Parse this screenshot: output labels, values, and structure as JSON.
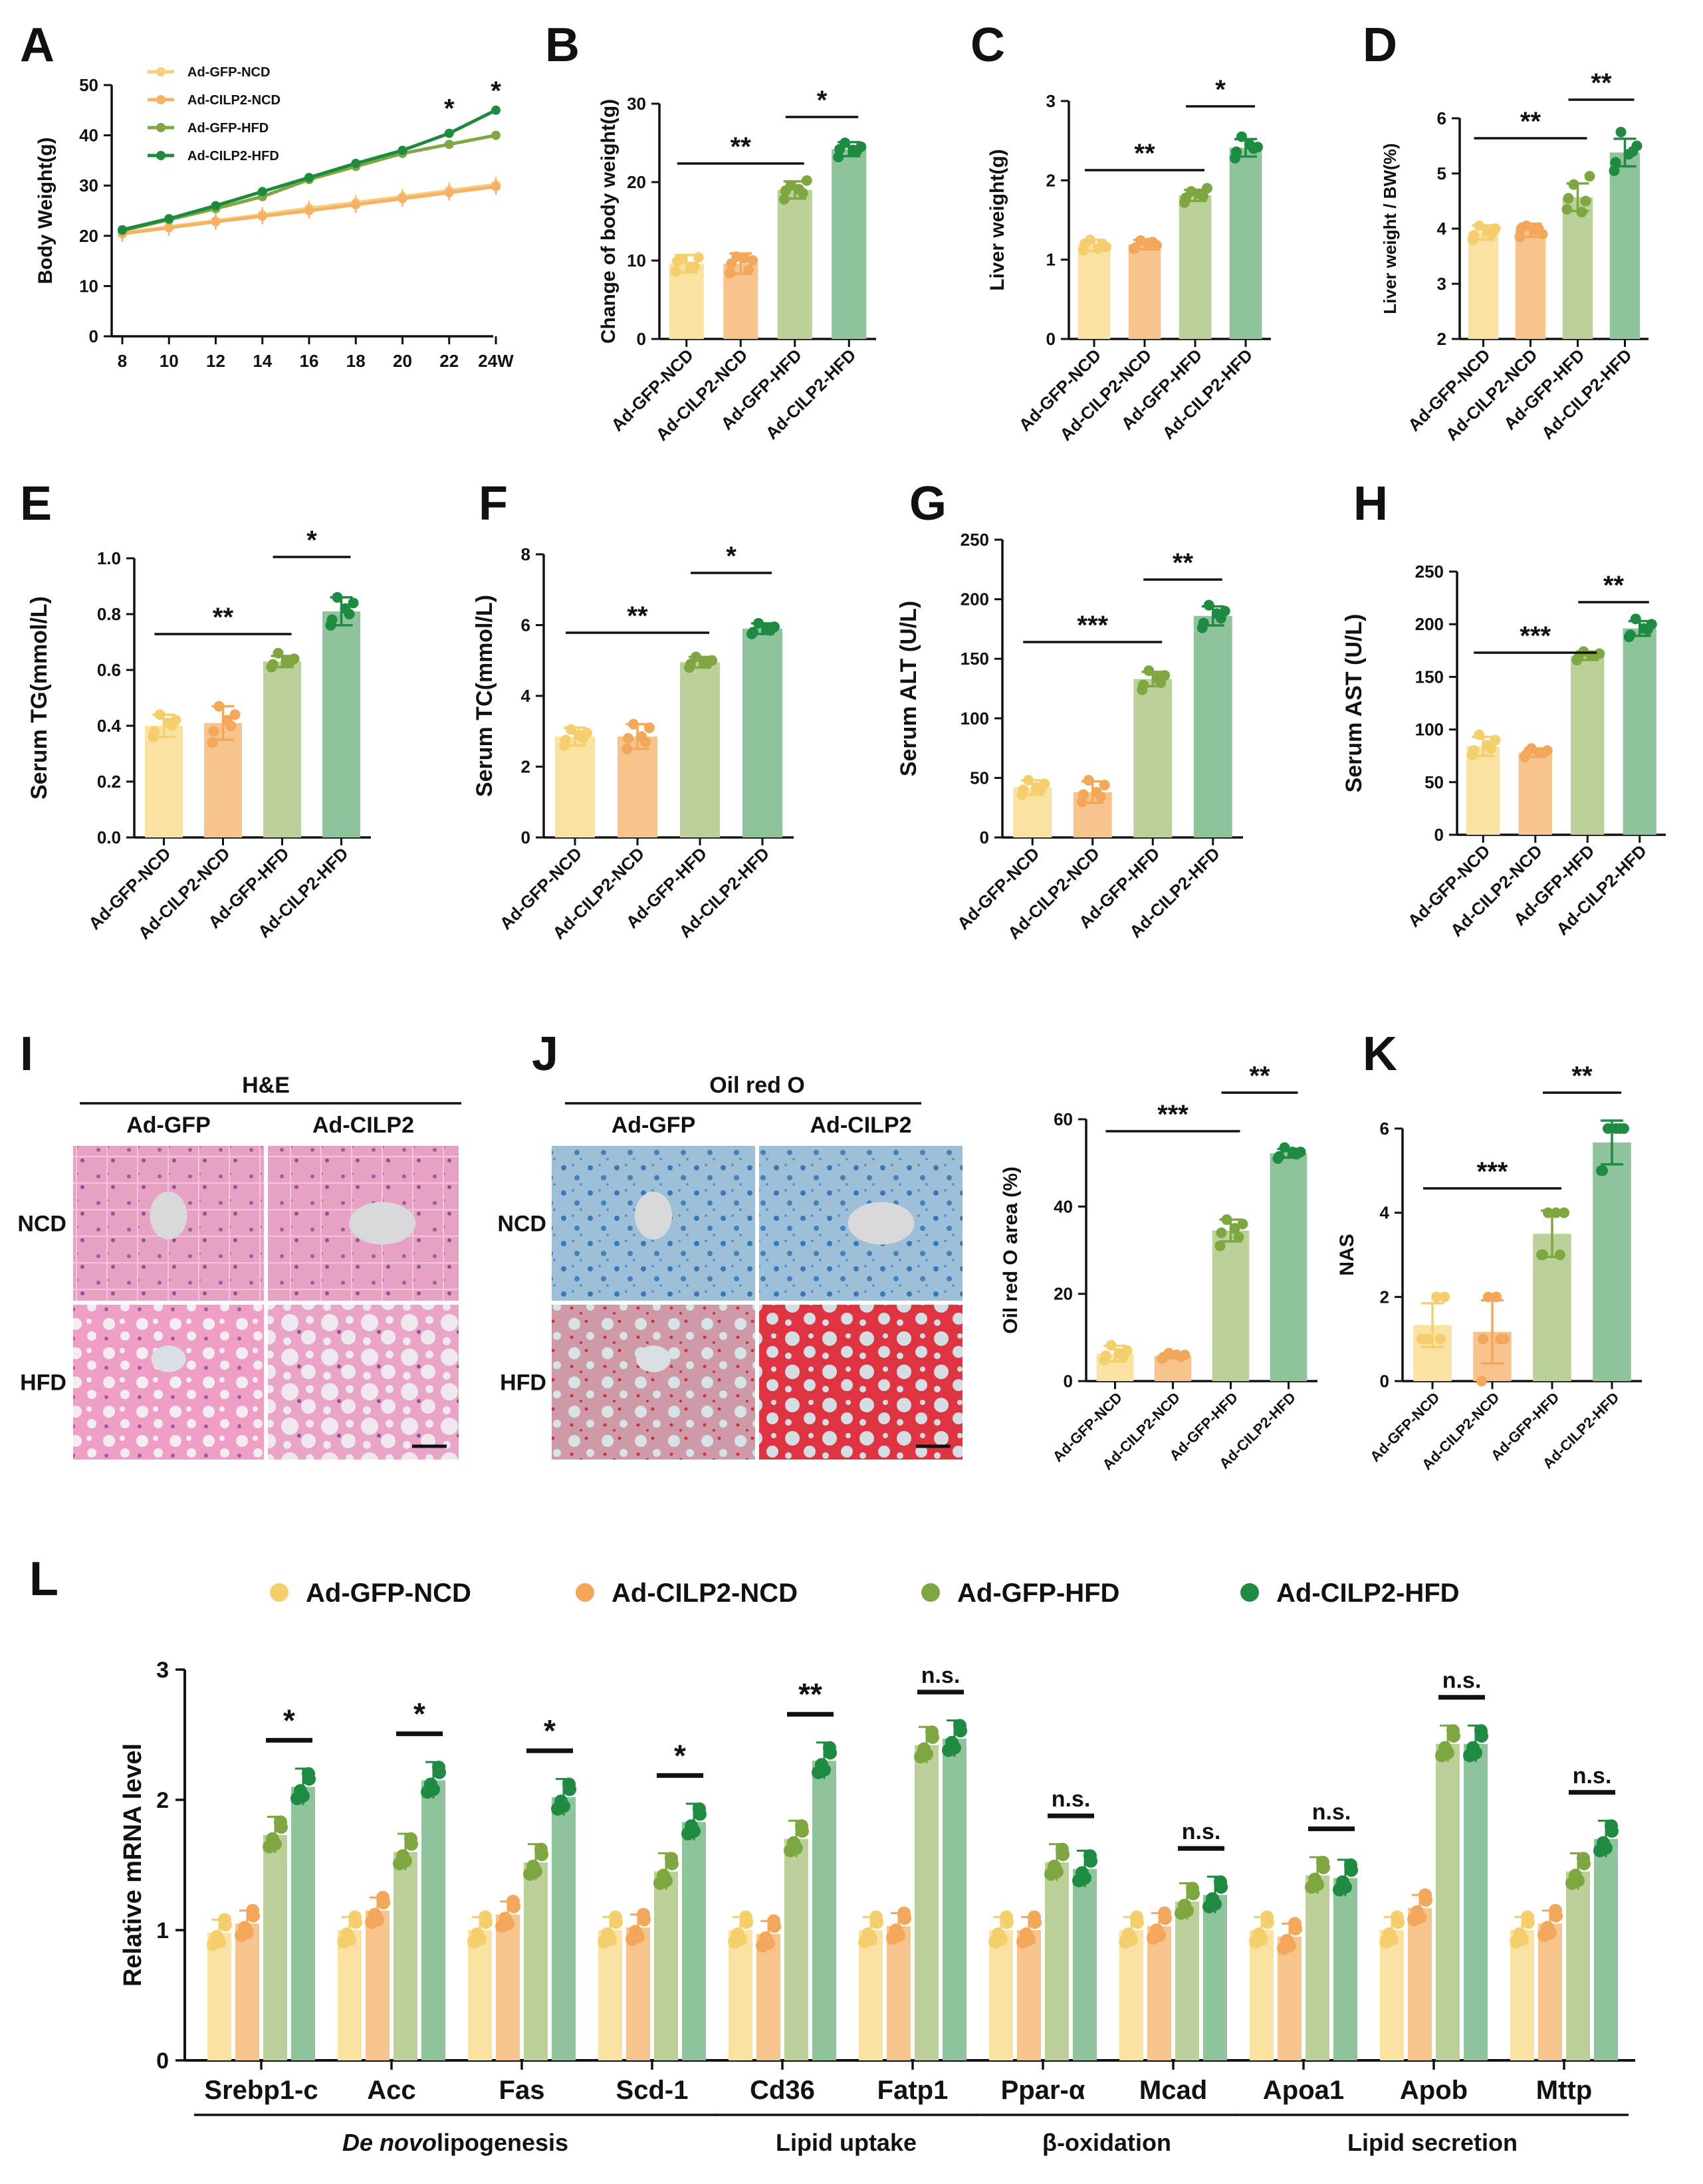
{
  "colors": {
    "Ad-GFP-NCD": "#f9e2a2",
    "Ad-CILP2-NCD": "#f8c48e",
    "Ad-GFP-HFD": "#bcd09a",
    "Ad-CILP2-HFD": "#8ec39c",
    "Ad-GFP-NCD-point": "#f5cf6e",
    "Ad-CILP2-NCD-point": "#f3a75a",
    "Ad-GFP-HFD-point": "#7ea741",
    "Ad-CILP2-HFD-point": "#1f8a42",
    "Ad-GFP-NCD-line": "#f7d07f",
    "Ad-CILP2-NCD-line": "#f5b266",
    "Ad-GFP-HFD-line": "#7fa845",
    "Ad-CILP2-HFD-line": "#1d8a3e"
  },
  "groups": [
    "Ad-GFP-NCD",
    "Ad-CILP2-NCD",
    "Ad-GFP-HFD",
    "Ad-CILP2-HFD"
  ],
  "chart_data": [
    {
      "panel": "A",
      "type": "line",
      "x": [
        8,
        10,
        12,
        14,
        16,
        18,
        20,
        22,
        24
      ],
      "xtick_labels": [
        "8",
        "10",
        "12",
        "14",
        "16",
        "18",
        "20",
        "22",
        "24W"
      ],
      "ylabel": "Body Weight(g)",
      "ylim": [
        0,
        50
      ],
      "yticks": [
        0,
        10,
        20,
        30,
        40,
        50
      ],
      "legend": [
        "Ad-GFP-NCD",
        "Ad-CILP2-NCD",
        "Ad-GFP-HFD",
        "Ad-CILP2-HFD"
      ],
      "series": [
        {
          "name": "Ad-GFP-NCD",
          "values": [
            20.5,
            21.8,
            23.0,
            24.2,
            25.5,
            26.6,
            27.8,
            29.0,
            30.2
          ]
        },
        {
          "name": "Ad-CILP2-NCD",
          "values": [
            20.4,
            21.6,
            22.8,
            23.9,
            25.0,
            26.2,
            27.4,
            28.6,
            29.8
          ]
        },
        {
          "name": "Ad-GFP-HFD",
          "values": [
            21.0,
            23.2,
            25.4,
            27.8,
            31.2,
            33.8,
            36.4,
            38.2,
            40.0
          ]
        },
        {
          "name": "Ad-CILP2-HFD",
          "values": [
            21.2,
            23.4,
            26.0,
            28.8,
            31.6,
            34.4,
            37.0,
            40.4,
            45.0
          ]
        }
      ],
      "annotations": [
        {
          "x": 22,
          "text": "*"
        },
        {
          "x": 24,
          "text": "*"
        }
      ]
    },
    {
      "panel": "B",
      "type": "bar",
      "ylabel": "Change of body weight(g)",
      "ylim": [
        0,
        30
      ],
      "yticks": [
        0,
        10,
        20,
        30
      ],
      "categories": [
        "Ad-GFP-NCD",
        "Ad-CILP2-NCD",
        "Ad-GFP-HFD",
        "Ad-CILP2-HFD"
      ],
      "values": [
        9.6,
        9.6,
        19.0,
        24.2
      ],
      "errors": [
        1.1,
        1.3,
        1.1,
        0.9
      ],
      "points": [
        [
          8.6,
          9.2,
          10.2,
          10.4,
          9.9,
          9.2
        ],
        [
          8.4,
          8.8,
          10.5,
          10.0,
          9.6,
          10.3
        ],
        [
          17.8,
          18.6,
          19.6,
          20.2,
          18.9,
          19.1
        ],
        [
          23.2,
          24.0,
          25.0,
          24.5,
          24.2,
          24.1
        ]
      ],
      "comparisons": [
        {
          "from": 0,
          "to": 2,
          "label": "**"
        },
        {
          "from": 2,
          "to": 3,
          "label": "*"
        }
      ]
    },
    {
      "panel": "C",
      "type": "bar",
      "ylabel": "Liver weight(g)",
      "ylim": [
        0,
        3
      ],
      "yticks": [
        0,
        1,
        2,
        3
      ],
      "categories": [
        "Ad-GFP-NCD",
        "Ad-CILP2-NCD",
        "Ad-GFP-HFD",
        "Ad-CILP2-HFD"
      ],
      "values": [
        1.18,
        1.19,
        1.81,
        2.41
      ],
      "errors": [
        0.07,
        0.06,
        0.07,
        0.11
      ],
      "points": [
        [
          1.12,
          1.2,
          1.25,
          1.16,
          1.2,
          1.14
        ],
        [
          1.14,
          1.22,
          1.24,
          1.18,
          1.15,
          1.21
        ],
        [
          1.72,
          1.8,
          1.86,
          1.9,
          1.78,
          1.83
        ],
        [
          2.28,
          2.4,
          2.55,
          2.42,
          2.36,
          2.45
        ]
      ],
      "comparisons": [
        {
          "from": 0,
          "to": 2,
          "label": "**"
        },
        {
          "from": 2,
          "to": 3,
          "label": "*"
        }
      ]
    },
    {
      "panel": "D",
      "type": "bar",
      "ylabel": "Liver weight / BW(%)",
      "ylim": [
        2,
        6
      ],
      "yticks": [
        2,
        3,
        4,
        5,
        6
      ],
      "categories": [
        "Ad-GFP-NCD",
        "Ad-CILP2-NCD",
        "Ad-GFP-HFD",
        "Ad-CILP2-HFD"
      ],
      "values": [
        3.93,
        3.97,
        4.57,
        5.38
      ],
      "errors": [
        0.13,
        0.12,
        0.25,
        0.25
      ],
      "points": [
        [
          3.8,
          3.9,
          4.05,
          4.0,
          3.88,
          3.95
        ],
        [
          3.85,
          4.0,
          4.05,
          3.9,
          4.0,
          3.98
        ],
        [
          4.35,
          4.5,
          4.8,
          4.95,
          4.55,
          4.3
        ],
        [
          5.05,
          5.4,
          5.75,
          5.5,
          5.2,
          5.35
        ]
      ],
      "comparisons": [
        {
          "from": 0,
          "to": 2,
          "label": "**"
        },
        {
          "from": 2,
          "to": 3,
          "label": "**"
        }
      ]
    },
    {
      "panel": "E",
      "type": "bar",
      "ylabel": "Serum TG(mmol/L)",
      "ylim": [
        0,
        1.0
      ],
      "yticks": [
        0.0,
        0.2,
        0.4,
        0.6,
        0.8,
        1.0
      ],
      "ytick_labels": [
        "0.0",
        "0.2",
        "0.4",
        "0.6",
        "0.8",
        "1.0"
      ],
      "categories": [
        "Ad-GFP-NCD",
        "Ad-CILP2-NCD",
        "Ad-GFP-HFD",
        "Ad-CILP2-HFD"
      ],
      "values": [
        0.4,
        0.41,
        0.63,
        0.81
      ],
      "errors": [
        0.04,
        0.06,
        0.02,
        0.05
      ],
      "points": [
        [
          0.36,
          0.4,
          0.44,
          0.42,
          0.38,
          0.41
        ],
        [
          0.34,
          0.4,
          0.47,
          0.44,
          0.38,
          0.42
        ],
        [
          0.61,
          0.63,
          0.66,
          0.64,
          0.62,
          0.63
        ],
        [
          0.76,
          0.8,
          0.86,
          0.84,
          0.78,
          0.82
        ]
      ],
      "comparisons": [
        {
          "from": 0,
          "to": 2,
          "label": "**"
        },
        {
          "from": 2,
          "to": 3,
          "label": "*"
        }
      ]
    },
    {
      "panel": "F",
      "type": "bar",
      "ylabel": "Serum TC(mmol/L)",
      "ylim": [
        0,
        8
      ],
      "yticks": [
        0,
        2,
        4,
        6,
        8
      ],
      "categories": [
        "Ad-GFP-NCD",
        "Ad-CILP2-NCD",
        "Ad-GFP-HFD",
        "Ad-CILP2-HFD"
      ],
      "values": [
        2.85,
        2.85,
        4.95,
        5.9
      ],
      "errors": [
        0.25,
        0.35,
        0.15,
        0.15
      ],
      "points": [
        [
          2.6,
          2.8,
          3.05,
          2.95,
          2.75,
          2.9
        ],
        [
          2.5,
          2.7,
          3.2,
          3.1,
          2.8,
          2.85
        ],
        [
          4.8,
          4.95,
          5.1,
          5.0,
          4.9,
          4.95
        ],
        [
          5.75,
          5.85,
          6.05,
          5.95,
          5.8,
          5.9
        ]
      ],
      "comparisons": [
        {
          "from": 0,
          "to": 2,
          "label": "**"
        },
        {
          "from": 2,
          "to": 3,
          "label": "*"
        }
      ]
    },
    {
      "panel": "G",
      "type": "bar",
      "ylabel": "Serum ALT (U/L)",
      "ylim": [
        0,
        250
      ],
      "yticks": [
        0,
        50,
        100,
        150,
        200,
        250
      ],
      "categories": [
        "Ad-GFP-NCD",
        "Ad-CILP2-NCD",
        "Ad-GFP-HFD",
        "Ad-CILP2-HFD"
      ],
      "values": [
        42,
        38,
        133,
        186
      ],
      "errors": [
        6,
        9,
        6,
        8
      ],
      "points": [
        [
          36,
          40,
          48,
          45,
          40,
          42
        ],
        [
          30,
          34,
          48,
          44,
          36,
          38
        ],
        [
          124,
          130,
          140,
          136,
          128,
          134
        ],
        [
          176,
          184,
          195,
          190,
          180,
          188
        ]
      ],
      "comparisons": [
        {
          "from": 0,
          "to": 2,
          "label": "***"
        },
        {
          "from": 2,
          "to": 3,
          "label": "**"
        }
      ]
    },
    {
      "panel": "H",
      "type": "bar",
      "ylabel": "Serum AST (U/L)",
      "ylim": [
        0,
        250
      ],
      "yticks": [
        0,
        50,
        100,
        150,
        200,
        250
      ],
      "categories": [
        "Ad-GFP-NCD",
        "Ad-CILP2-NCD",
        "Ad-GFP-HFD",
        "Ad-CILP2-HFD"
      ],
      "values": [
        84,
        78,
        170,
        196
      ],
      "errors": [
        9,
        4,
        4,
        7
      ],
      "points": [
        [
          76,
          82,
          95,
          90,
          80,
          85
        ],
        [
          74,
          78,
          82,
          80,
          76,
          78
        ],
        [
          166,
          170,
          174,
          172,
          168,
          170
        ],
        [
          188,
          195,
          205,
          200,
          190,
          196
        ]
      ],
      "comparisons": [
        {
          "from": 0,
          "to": 2,
          "label": "***"
        },
        {
          "from": 2,
          "to": 3,
          "label": "**"
        }
      ]
    },
    {
      "panel": "J",
      "type": "bar",
      "ylabel": "Oil red O area (%)",
      "ylim": [
        0,
        60
      ],
      "yticks": [
        0,
        20,
        40,
        60
      ],
      "categories": [
        "Ad-GFP-NCD",
        "Ad-CILP2-NCD",
        "Ad-GFP-HFD",
        "Ad-CILP2-HFD"
      ],
      "values": [
        6.3,
        5.8,
        34.5,
        52.2
      ],
      "errors": [
        1.8,
        0.6,
        2.5,
        1.0
      ],
      "points": [
        [
          4.8,
          5.6,
          8.2,
          7.0,
          5.8,
          6.4
        ],
        [
          5.2,
          5.6,
          6.4,
          6.0,
          5.5,
          6.0
        ],
        [
          31,
          33,
          37,
          36,
          34,
          35
        ],
        [
          51,
          52,
          53.5,
          52.5,
          51.5,
          52.5
        ]
      ],
      "comparisons": [
        {
          "from": 0,
          "to": 2,
          "label": "***"
        },
        {
          "from": 2,
          "to": 3,
          "label": "**"
        }
      ]
    },
    {
      "panel": "K",
      "type": "bar",
      "ylabel": "NAS",
      "ylim": [
        0,
        6
      ],
      "yticks": [
        0,
        2,
        4,
        6
      ],
      "categories": [
        "Ad-GFP-NCD",
        "Ad-CILP2-NCD",
        "Ad-GFP-HFD",
        "Ad-CILP2-HFD"
      ],
      "values": [
        1.33,
        1.17,
        3.5,
        5.67
      ],
      "errors": [
        0.52,
        0.75,
        0.55,
        0.52
      ],
      "points": [
        [
          1,
          1,
          1,
          2,
          1,
          2
        ],
        [
          0,
          1,
          2,
          1,
          1,
          2
        ],
        [
          3,
          3,
          4,
          4,
          3,
          4
        ],
        [
          5,
          6,
          6,
          6,
          5,
          6
        ]
      ],
      "comparisons": [
        {
          "from": 0,
          "to": 2,
          "label": "***"
        },
        {
          "from": 2,
          "to": 3,
          "label": "**"
        }
      ]
    },
    {
      "panel": "L",
      "type": "bar",
      "ylabel": "Relative mRNA level",
      "ylim": [
        0,
        3
      ],
      "yticks": [
        0,
        1,
        2,
        3
      ],
      "legend": [
        "Ad-GFP-NCD",
        "Ad-CILP2-NCD",
        "Ad-GFP-HFD",
        "Ad-CILP2-HFD"
      ],
      "categories": [
        "Srebp1-c",
        "Acc",
        "Fas",
        "Scd-1",
        "Cd36",
        "Fatp1",
        "Ppar-α",
        "Mcad",
        "Apoa1",
        "Apob",
        "Mttp"
      ],
      "series": [
        {
          "name": "Ad-GFP-NCD",
          "values": [
            0.98,
            1.0,
            1.0,
            1.0,
            1.0,
            1.0,
            1.0,
            1.0,
            1.0,
            1.0,
            1.0
          ],
          "errors": [
            0.12,
            0.12,
            0.08,
            0.07,
            0.12,
            0.1,
            0.07,
            0.05,
            0.09,
            0.08,
            0.1
          ]
        },
        {
          "name": "Ad-CILP2-NCD",
          "values": [
            1.05,
            1.15,
            1.12,
            1.02,
            0.97,
            1.03,
            1.0,
            1.03,
            0.95,
            1.17,
            1.05
          ]
        },
        {
          "name": "Ad-GFP-HFD",
          "values": [
            1.73,
            1.6,
            1.52,
            1.45,
            1.7,
            2.42,
            1.52,
            1.22,
            1.42,
            2.43,
            1.45
          ]
        },
        {
          "name": "Ad-CILP2-HFD",
          "values": [
            2.1,
            2.15,
            2.02,
            1.83,
            2.3,
            2.47,
            1.47,
            1.27,
            1.4,
            2.43,
            1.7
          ]
        }
      ],
      "comparisons": [
        "*",
        "*",
        "*",
        "*",
        "**",
        "n.s.",
        "n.s.",
        "n.s.",
        "n.s.",
        "n.s.",
        "n.s."
      ],
      "category_groups": [
        {
          "label_italic": "De novo",
          "label": "lipogenesis",
          "from": 0,
          "to": 3
        },
        {
          "label": "Lipid uptake",
          "from": 4,
          "to": 5
        },
        {
          "label": "β-oxidation",
          "from": 6,
          "to": 7
        },
        {
          "label": "Lipid secretion",
          "from": 8,
          "to": 10
        }
      ]
    }
  ],
  "panels": {
    "I": {
      "title": "H&E",
      "cols": [
        "Ad-GFP",
        "Ad-CILP2"
      ],
      "rows": [
        "NCD",
        "HFD"
      ]
    },
    "J": {
      "title": "Oil red O",
      "cols": [
        "Ad-GFP",
        "Ad-CILP2"
      ],
      "rows": [
        "NCD",
        "HFD"
      ]
    }
  },
  "panel_letters": [
    "A",
    "B",
    "C",
    "D",
    "E",
    "F",
    "G",
    "H",
    "I",
    "J",
    "K",
    "L"
  ]
}
